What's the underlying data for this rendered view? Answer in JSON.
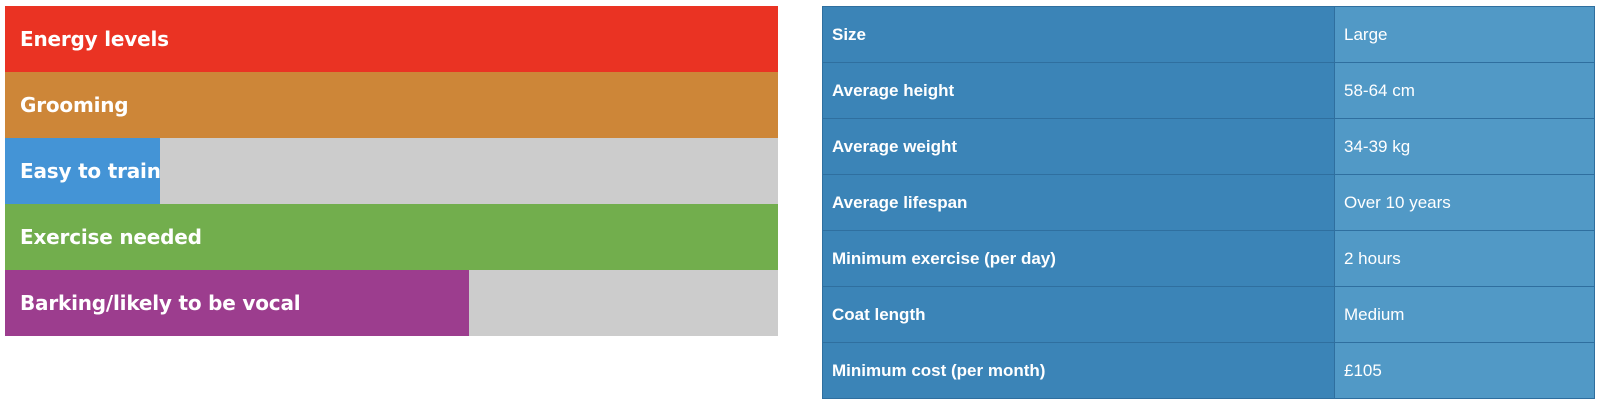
{
  "traits": [
    {
      "label": "Energy levels",
      "level": 1.0,
      "color": "#ea3323"
    },
    {
      "label": "Grooming",
      "level": 1.0,
      "color": "#cd8638"
    },
    {
      "label": "Easy to train",
      "level": 0.2,
      "color": "#4494d6"
    },
    {
      "label": "Exercise needed",
      "level": 1.0,
      "color": "#72ae4d"
    },
    {
      "label": "Barking/likely to be vocal",
      "level": 0.6,
      "color": "#9c3d8e"
    }
  ],
  "facts": [
    {
      "key": "Size",
      "value": "Large"
    },
    {
      "key": "Average height",
      "value": "58-64 cm"
    },
    {
      "key": "Average weight",
      "value": "34-39 kg"
    },
    {
      "key": "Average lifespan",
      "value": "Over 10 years"
    },
    {
      "key": "Minimum exercise (per day)",
      "value": "2 hours"
    },
    {
      "key": "Coat length",
      "value": "Medium"
    },
    {
      "key": "Minimum cost (per month)",
      "value": "£105"
    }
  ]
}
